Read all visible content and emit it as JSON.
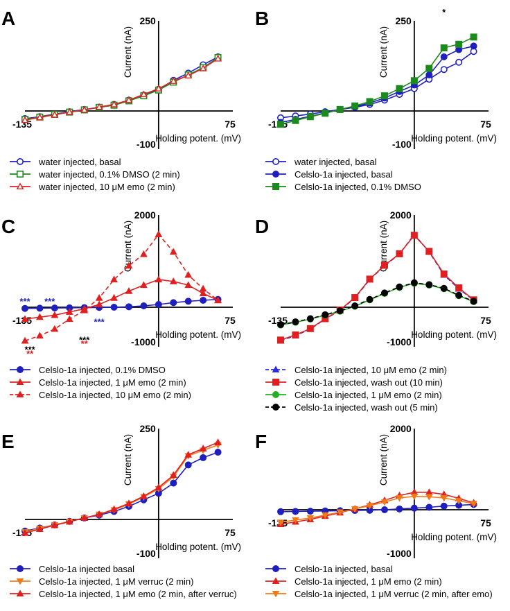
{
  "chart_data": [
    {
      "panel": "A",
      "type": "line",
      "xlim": [
        -135,
        75
      ],
      "ylim": [
        -100,
        250
      ],
      "yticks": [
        "250",
        "-100"
      ],
      "xticks": [
        "-135",
        "75"
      ],
      "ylabel": "Current (nA)",
      "xlabel": "Holding potent. (mV)",
      "series": [
        {
          "name": "water injected, basal",
          "color": "#1f1fbf",
          "marker": "circle-open",
          "dash": "solid",
          "x": [
            -135,
            -120,
            -105,
            -90,
            -75,
            -60,
            -45,
            -30,
            -15,
            0,
            15,
            30,
            45,
            60
          ],
          "y": [
            -20,
            -15,
            -8,
            -2,
            4,
            10,
            18,
            30,
            44,
            60,
            85,
            105,
            128,
            150
          ]
        },
        {
          "name": "water injected, 0.1% DMSO (2 min)",
          "color": "#1c8a1c",
          "marker": "square-open",
          "dash": "solid",
          "x": [
            -135,
            -120,
            -105,
            -90,
            -75,
            -60,
            -45,
            -30,
            -15,
            0,
            15,
            30,
            45,
            60
          ],
          "y": [
            -22,
            -16,
            -9,
            -3,
            3,
            10,
            16,
            28,
            42,
            58,
            80,
            100,
            120,
            148
          ]
        },
        {
          "name": "water injected, 10 μM emo (2 min)",
          "color": "#e02020",
          "marker": "triangle-open",
          "dash": "solid",
          "x": [
            -135,
            -120,
            -105,
            -90,
            -75,
            -60,
            -45,
            -30,
            -15,
            0,
            15,
            30,
            45,
            60
          ],
          "y": [
            -24,
            -17,
            -10,
            -3,
            3,
            11,
            18,
            30,
            46,
            62,
            83,
            98,
            118,
            145
          ]
        }
      ]
    },
    {
      "panel": "B",
      "type": "line",
      "xlim": [
        -135,
        75
      ],
      "ylim": [
        -100,
        250
      ],
      "yticks": [
        "250",
        "-100"
      ],
      "xticks": [
        "-135",
        "75"
      ],
      "ylabel": "Current (nA)",
      "xlabel": "Holding potent. (mV)",
      "annotations": [
        {
          "text": "*",
          "x": 30,
          "y": 265,
          "color": "#000000"
        }
      ],
      "series": [
        {
          "name": "water injected, basal",
          "color": "#1f1fbf",
          "marker": "circle-open",
          "dash": "solid",
          "x": [
            -135,
            -120,
            -105,
            -90,
            -75,
            -60,
            -45,
            -30,
            -15,
            0,
            15,
            30,
            45,
            60
          ],
          "y": [
            -18,
            -13,
            -8,
            -2,
            4,
            10,
            18,
            30,
            46,
            62,
            88,
            115,
            135,
            165
          ]
        },
        {
          "name": "Celslo-1a injected, basal",
          "color": "#1f1fbf",
          "marker": "circle",
          "dash": "solid",
          "x": [
            -135,
            -120,
            -105,
            -90,
            -75,
            -60,
            -45,
            -30,
            -15,
            0,
            15,
            30,
            45,
            60
          ],
          "y": [
            -30,
            -22,
            -14,
            -5,
            4,
            12,
            22,
            36,
            54,
            72,
            100,
            150,
            170,
            180
          ]
        },
        {
          "name": "Celslo-1a injected, 0.1% DMSO",
          "color": "#1c8a1c",
          "marker": "square",
          "dash": "solid",
          "x": [
            -135,
            -120,
            -105,
            -90,
            -75,
            -60,
            -45,
            -30,
            -15,
            0,
            15,
            30,
            45,
            60
          ],
          "y": [
            -35,
            -25,
            -15,
            -6,
            4,
            14,
            26,
            42,
            62,
            84,
            118,
            175,
            185,
            205
          ]
        }
      ]
    },
    {
      "panel": "C",
      "type": "line",
      "xlim": [
        -135,
        75
      ],
      "ylim": [
        -1000,
        2000
      ],
      "yticks": [
        "2000",
        "-1000"
      ],
      "xticks": [
        "-135",
        "75"
      ],
      "ylabel": "Current (nA)",
      "xlabel": "Holding potent. (mV)",
      "series": [
        {
          "name": "Celslo-1a injected, 0.1% DMSO",
          "color": "#1f1fbf",
          "marker": "circle",
          "dash": "solid",
          "x": [
            -135,
            -120,
            -105,
            -90,
            -75,
            -60,
            -45,
            -30,
            -15,
            0,
            15,
            30,
            45,
            60
          ],
          "y": [
            -30,
            -25,
            -20,
            -15,
            -10,
            -5,
            0,
            10,
            30,
            60,
            100,
            130,
            150,
            170
          ]
        },
        {
          "name": "Celslo-1a injected, 1 μM emo (2 min)",
          "color": "#e02020",
          "marker": "triangle",
          "dash": "solid",
          "x": [
            -135,
            -120,
            -105,
            -90,
            -75,
            -60,
            -45,
            -30,
            -15,
            0,
            15,
            30,
            45,
            60
          ],
          "y": [
            -300,
            -250,
            -200,
            -120,
            -40,
            60,
            200,
            350,
            480,
            600,
            560,
            480,
            300,
            150
          ]
        },
        {
          "name": "Celslo-1a injected, 10 μM emo (2 min)",
          "color": "#e02020",
          "marker": "triangle",
          "dash": "dashed",
          "x": [
            -135,
            -120,
            -105,
            -90,
            -75,
            -60,
            -45,
            -30,
            -15,
            0,
            15,
            30,
            45,
            60
          ],
          "y": [
            -850,
            -720,
            -550,
            -300,
            -80,
            200,
            600,
            900,
            1150,
            1580,
            1200,
            700,
            400,
            150
          ]
        }
      ],
      "annotations": [
        {
          "text": "***",
          "x": -135,
          "y": 60,
          "color": "#1f1fbf"
        },
        {
          "text": "***",
          "x": -110,
          "y": 60,
          "color": "#1f1fbf"
        },
        {
          "text": "***",
          "x": -60,
          "y": -450,
          "color": "#1f1fbf"
        },
        {
          "text": "***",
          "x": -75,
          "y": -900,
          "color": "#000000"
        },
        {
          "text": "**",
          "x": -75,
          "y": -1000,
          "color": "#e02020"
        },
        {
          "text": "***",
          "x": -130,
          "y": -1150,
          "color": "#000000"
        },
        {
          "text": "**",
          "x": -130,
          "y": -1250,
          "color": "#e02020"
        }
      ]
    },
    {
      "panel": "D",
      "type": "line",
      "xlim": [
        -135,
        75
      ],
      "ylim": [
        -1000,
        2000
      ],
      "yticks": [
        "2000",
        "-1000"
      ],
      "xticks": [
        "-135",
        "75"
      ],
      "ylabel": "Current (nA)",
      "xlabel": "Holding potent. (mV)",
      "series": [
        {
          "name": "Celslo-1a injected, 10 μM emo (2 min)",
          "color": "#2b2be0",
          "marker": "triangle",
          "dash": "dashed",
          "x": [
            -135,
            -120,
            -105,
            -90,
            -75,
            -60,
            -45,
            -30,
            -15,
            0,
            15,
            30,
            45,
            60
          ],
          "y": [
            -850,
            -720,
            -550,
            -300,
            -80,
            200,
            600,
            900,
            1150,
            1580,
            1200,
            700,
            400,
            150
          ]
        },
        {
          "name": "Celslo-1a injected, wash out (10 min)",
          "color": "#e02020",
          "marker": "square",
          "dash": "solid",
          "x": [
            -135,
            -120,
            -105,
            -90,
            -75,
            -60,
            -45,
            -30,
            -15,
            0,
            15,
            30,
            45,
            60
          ],
          "y": [
            -830,
            -700,
            -540,
            -290,
            -70,
            210,
            610,
            910,
            1160,
            1560,
            1210,
            720,
            420,
            160
          ]
        },
        {
          "name": "Celslo-1a injected, 1 μM emo (2 min)",
          "color": "#22b022",
          "marker": "circle",
          "dash": "solid",
          "x": [
            -135,
            -120,
            -105,
            -90,
            -75,
            -60,
            -45,
            -30,
            -15,
            0,
            15,
            30,
            45,
            60
          ],
          "y": [
            -450,
            -380,
            -300,
            -200,
            -100,
            20,
            160,
            300,
            430,
            520,
            480,
            400,
            250,
            120
          ]
        },
        {
          "name": "Celslo-1a injected, wash out (5 min)",
          "color": "#000000",
          "marker": "circle",
          "dash": "dashed",
          "x": [
            -135,
            -120,
            -105,
            -90,
            -75,
            -60,
            -45,
            -30,
            -15,
            0,
            15,
            30,
            45,
            60
          ],
          "y": [
            -440,
            -370,
            -290,
            -190,
            -90,
            30,
            170,
            310,
            440,
            530,
            490,
            410,
            260,
            130
          ]
        }
      ]
    },
    {
      "panel": "E",
      "type": "line",
      "xlim": [
        -135,
        75
      ],
      "ylim": [
        -100,
        250
      ],
      "yticks": [
        "250",
        "-100"
      ],
      "xticks": [
        "-135",
        "75"
      ],
      "ylabel": "Current (nA)",
      "xlabel": "Holding potent. (mV)",
      "series": [
        {
          "name": "Celslo-1a injected basal",
          "color": "#1f1fbf",
          "marker": "circle",
          "dash": "solid",
          "x": [
            -135,
            -120,
            -105,
            -90,
            -75,
            -60,
            -45,
            -30,
            -15,
            0,
            15,
            30,
            45,
            60
          ],
          "y": [
            -30,
            -22,
            -14,
            -5,
            4,
            12,
            22,
            36,
            54,
            72,
            100,
            150,
            170,
            185
          ]
        },
        {
          "name": "Celslo-1a injected, 1 μM verruc (2 min)",
          "color": "#f07a1a",
          "marker": "triangle-down",
          "dash": "solid",
          "x": [
            -135,
            -120,
            -105,
            -90,
            -75,
            -60,
            -45,
            -30,
            -15,
            0,
            15,
            30,
            45,
            60
          ],
          "y": [
            -32,
            -23,
            -14,
            -5,
            4,
            14,
            26,
            42,
            62,
            84,
            118,
            175,
            190,
            205
          ]
        },
        {
          "name": "Celslo-1a injected, 1 μM emo (2 min, after verruc)",
          "color": "#e02020",
          "marker": "triangle",
          "dash": "solid",
          "x": [
            -135,
            -120,
            -105,
            -90,
            -75,
            -60,
            -45,
            -30,
            -15,
            0,
            15,
            30,
            45,
            60
          ],
          "y": [
            -35,
            -25,
            -15,
            -6,
            4,
            14,
            28,
            44,
            64,
            88,
            122,
            178,
            195,
            212
          ]
        }
      ]
    },
    {
      "panel": "F",
      "type": "line",
      "xlim": [
        -135,
        75
      ],
      "ylim": [
        -1000,
        2000
      ],
      "yticks": [
        "2000",
        "-1000"
      ],
      "xticks": [
        "-135",
        "75"
      ],
      "ylabel": "Current (nA)",
      "xlabel": "Holding potent. (mV)",
      "series": [
        {
          "name": "Celslo-1a injected, basal",
          "color": "#1f1fbf",
          "marker": "circle",
          "dash": "solid",
          "x": [
            -135,
            -120,
            -105,
            -90,
            -75,
            -60,
            -45,
            -30,
            -15,
            0,
            15,
            30,
            45,
            60
          ],
          "y": [
            -40,
            -35,
            -30,
            -25,
            -20,
            -15,
            -10,
            0,
            20,
            40,
            60,
            90,
            110,
            130
          ]
        },
        {
          "name": "Celslo-1a injected, 1 μM emo (2 min)",
          "color": "#e02020",
          "marker": "triangle",
          "dash": "solid",
          "x": [
            -135,
            -120,
            -105,
            -90,
            -75,
            -60,
            -45,
            -30,
            -15,
            0,
            15,
            30,
            45,
            60
          ],
          "y": [
            -300,
            -250,
            -200,
            -130,
            -60,
            20,
            120,
            230,
            350,
            430,
            430,
            380,
            280,
            170
          ]
        },
        {
          "name": "Celslo-1a injected, 1 μM verruc (2 min, after emo)",
          "color": "#f07a1a",
          "marker": "triangle-down",
          "dash": "solid",
          "x": [
            -135,
            -120,
            -105,
            -90,
            -75,
            -60,
            -45,
            -30,
            -15,
            0,
            15,
            30,
            45,
            60
          ],
          "y": [
            -260,
            -210,
            -170,
            -110,
            -50,
            20,
            100,
            190,
            290,
            330,
            320,
            290,
            220,
            150
          ]
        }
      ]
    }
  ]
}
